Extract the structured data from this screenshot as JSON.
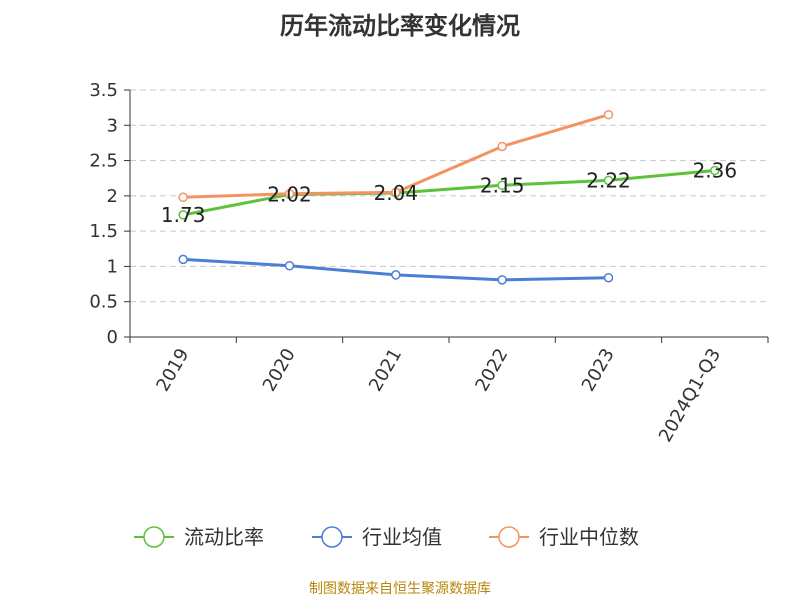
{
  "source": "制图数据来自恒生聚源数据库",
  "chart_data": {
    "type": "line",
    "title": "历年流动比率变化情况",
    "categories": [
      "2019",
      "2020",
      "2021",
      "2022",
      "2023",
      "2024Q1-Q3"
    ],
    "ylim": [
      0,
      3.5
    ],
    "yticks": [
      "0",
      "0.5",
      "1",
      "1.5",
      "2",
      "2.5",
      "3",
      "3.5"
    ],
    "grid": true,
    "legend_position": "bottom",
    "series": [
      {
        "name": "流动比率",
        "color": "#5cc23c",
        "values": [
          1.73,
          2.02,
          2.04,
          2.15,
          2.22,
          2.36
        ],
        "labels": [
          "1.73",
          "2.02",
          "2.04",
          "2.15",
          "2.22",
          "2.36"
        ]
      },
      {
        "name": "行业均值",
        "color": "#4a7fd8",
        "values": [
          1.1,
          1.01,
          0.88,
          0.81,
          0.84,
          null
        ]
      },
      {
        "name": "行业中位数",
        "color": "#f59262",
        "values": [
          1.98,
          2.03,
          2.05,
          2.7,
          3.15,
          null
        ]
      }
    ]
  }
}
